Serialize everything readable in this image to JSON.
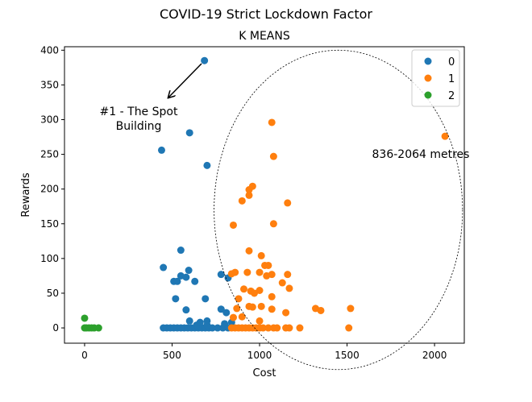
{
  "chart_data": {
    "type": "scatter",
    "title": "COVID-19 Strict Lockdown Factor",
    "subtitle": "K MEANS",
    "xlabel": "Cost",
    "ylabel": "Rewards",
    "xlim": [
      -115,
      2170
    ],
    "ylim": [
      -22,
      405
    ],
    "xticks": [
      0,
      500,
      1000,
      1500,
      2000
    ],
    "yticks": [
      0,
      50,
      100,
      150,
      200,
      250,
      300,
      350,
      400
    ],
    "grid": false,
    "legend_position": "top-right",
    "colors": {
      "0": "#1f77b4",
      "1": "#ff7f0e",
      "2": "#2ca02c"
    },
    "series": [
      {
        "name": "0",
        "color": "#1f77b4",
        "points": [
          [
            685,
            385
          ],
          [
            600,
            281
          ],
          [
            440,
            256
          ],
          [
            700,
            234
          ],
          [
            550,
            112
          ],
          [
            450,
            87
          ],
          [
            595,
            83
          ],
          [
            780,
            77
          ],
          [
            550,
            75
          ],
          [
            580,
            73
          ],
          [
            510,
            67
          ],
          [
            530,
            67
          ],
          [
            630,
            67
          ],
          [
            820,
            72
          ],
          [
            690,
            42
          ],
          [
            520,
            42
          ],
          [
            580,
            26
          ],
          [
            780,
            27
          ],
          [
            810,
            22
          ],
          [
            700,
            10
          ],
          [
            600,
            10
          ],
          [
            840,
            8
          ],
          [
            800,
            6
          ],
          [
            450,
            0
          ],
          [
            470,
            0
          ],
          [
            490,
            0
          ],
          [
            510,
            0
          ],
          [
            530,
            0
          ],
          [
            550,
            0
          ],
          [
            570,
            0
          ],
          [
            590,
            0
          ],
          [
            610,
            0
          ],
          [
            630,
            0
          ],
          [
            650,
            0
          ],
          [
            670,
            0
          ],
          [
            690,
            0
          ],
          [
            710,
            0
          ],
          [
            730,
            0
          ],
          [
            760,
            0
          ],
          [
            790,
            0
          ],
          [
            820,
            0
          ],
          [
            640,
            4
          ],
          [
            660,
            8
          ],
          [
            700,
            4
          ]
        ]
      },
      {
        "name": "1",
        "color": "#ff7f0e",
        "points": [
          [
            1070,
            296
          ],
          [
            2060,
            276
          ],
          [
            1080,
            247
          ],
          [
            960,
            204
          ],
          [
            940,
            199
          ],
          [
            900,
            183
          ],
          [
            940,
            191
          ],
          [
            1160,
            180
          ],
          [
            850,
            148
          ],
          [
            1080,
            150
          ],
          [
            940,
            111
          ],
          [
            1010,
            104
          ],
          [
            1030,
            90
          ],
          [
            1050,
            90
          ],
          [
            1000,
            80
          ],
          [
            1160,
            77
          ],
          [
            860,
            80
          ],
          [
            840,
            78
          ],
          [
            930,
            80
          ],
          [
            1070,
            77
          ],
          [
            1040,
            75
          ],
          [
            1130,
            65
          ],
          [
            910,
            56
          ],
          [
            1170,
            57
          ],
          [
            1000,
            54
          ],
          [
            950,
            53
          ],
          [
            970,
            50
          ],
          [
            1070,
            45
          ],
          [
            880,
            42
          ],
          [
            870,
            28
          ],
          [
            940,
            31
          ],
          [
            960,
            30
          ],
          [
            1010,
            31
          ],
          [
            1070,
            27
          ],
          [
            1320,
            28
          ],
          [
            1350,
            25
          ],
          [
            1520,
            28
          ],
          [
            1150,
            22
          ],
          [
            1000,
            10
          ],
          [
            900,
            16
          ],
          [
            850,
            15
          ],
          [
            840,
            0
          ],
          [
            860,
            0
          ],
          [
            880,
            0
          ],
          [
            900,
            0
          ],
          [
            920,
            0
          ],
          [
            940,
            0
          ],
          [
            960,
            0
          ],
          [
            980,
            0
          ],
          [
            1000,
            0
          ],
          [
            1020,
            0
          ],
          [
            1050,
            0
          ],
          [
            1080,
            0
          ],
          [
            1100,
            0
          ],
          [
            1150,
            0
          ],
          [
            1170,
            0
          ],
          [
            1230,
            0
          ],
          [
            1510,
            0
          ]
        ]
      },
      {
        "name": "2",
        "color": "#2ca02c",
        "points": [
          [
            0,
            14
          ],
          [
            0,
            0
          ],
          [
            10,
            0
          ],
          [
            25,
            0
          ],
          [
            40,
            0
          ],
          [
            55,
            0
          ],
          [
            80,
            0
          ]
        ]
      }
    ],
    "annotations": [
      {
        "id": "spot",
        "lines": [
          "#1 - The Spot",
          "Building"
        ],
        "points_to": [
          685,
          385
        ]
      },
      {
        "id": "range",
        "lines": [
          "836-2064 metres"
        ]
      }
    ],
    "ellipse": {
      "center": [
        1450,
        170
      ],
      "rx": 710,
      "ry": 230
    }
  }
}
